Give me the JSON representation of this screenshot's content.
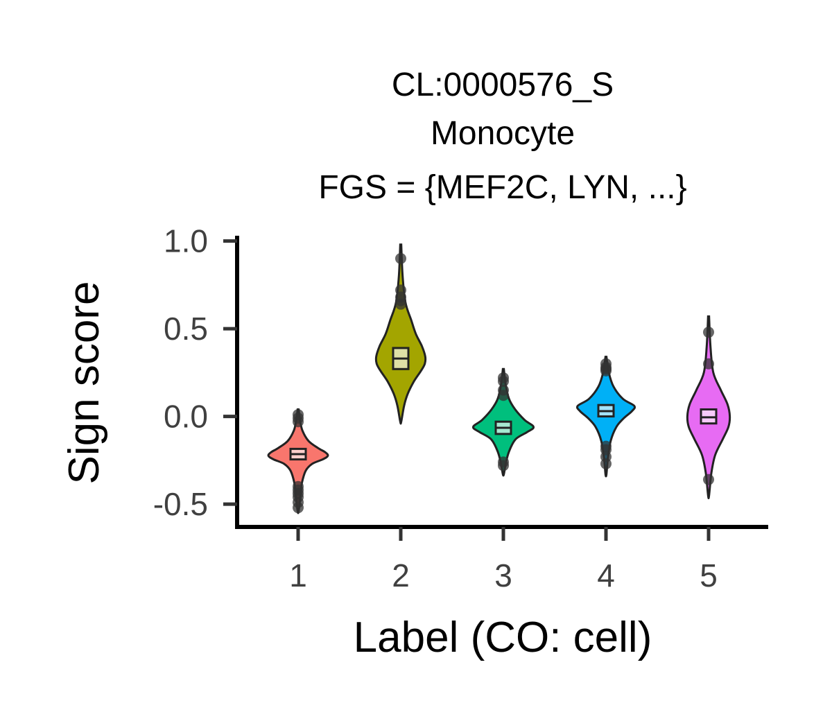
{
  "chart_data": {
    "type": "violin",
    "title_lines": [
      "CL:0000576_S",
      "Monocyte",
      "FGS = {MEF2C, LYN, ...}"
    ],
    "xlabel": "Label (CO: cell)",
    "ylabel": "Sign score",
    "ylim": [
      -0.63,
      1.03
    ],
    "yticks": [
      1.0,
      0.5,
      0.0,
      -0.5
    ],
    "ytick_labels": [
      "1.0",
      "0.5",
      "0.0",
      "-0.5"
    ],
    "categories": [
      "1",
      "2",
      "3",
      "4",
      "5"
    ],
    "grid": false,
    "legend": "none",
    "groups": [
      {
        "label": "1",
        "color": "#F8766D",
        "whisker_low": -0.54,
        "whisker_high": 0.04,
        "q1": -0.245,
        "median": -0.215,
        "q3": -0.185,
        "density": [
          [
            0.04,
            0.01
          ],
          [
            -0.02,
            0.04
          ],
          [
            -0.08,
            0.09
          ],
          [
            -0.14,
            0.22
          ],
          [
            -0.18,
            0.42
          ],
          [
            -0.205,
            0.58
          ],
          [
            -0.225,
            0.63
          ],
          [
            -0.245,
            0.52
          ],
          [
            -0.27,
            0.3
          ],
          [
            -0.31,
            0.16
          ],
          [
            -0.38,
            0.08
          ],
          [
            -0.45,
            0.05
          ],
          [
            -0.54,
            0.01
          ]
        ],
        "outliers": [
          0.01,
          -0.01,
          -0.03,
          -0.4,
          -0.42,
          -0.44,
          -0.46,
          -0.49,
          -0.52
        ]
      },
      {
        "label": "2",
        "color": "#A3A500",
        "whisker_low": -0.03,
        "whisker_high": 0.98,
        "q1": 0.27,
        "median": 0.33,
        "q3": 0.39,
        "density": [
          [
            0.98,
            0.01
          ],
          [
            0.8,
            0.04
          ],
          [
            0.65,
            0.1
          ],
          [
            0.55,
            0.22
          ],
          [
            0.47,
            0.32
          ],
          [
            0.4,
            0.45
          ],
          [
            0.34,
            0.52
          ],
          [
            0.3,
            0.51
          ],
          [
            0.26,
            0.43
          ],
          [
            0.2,
            0.28
          ],
          [
            0.13,
            0.15
          ],
          [
            0.06,
            0.07
          ],
          [
            -0.03,
            0.01
          ]
        ],
        "outliers": [
          0.9,
          0.72,
          0.68,
          0.66,
          0.64
        ]
      },
      {
        "label": "3",
        "color": "#00BF7D",
        "whisker_low": -0.33,
        "whisker_high": 0.27,
        "q1": -0.1,
        "median": -0.065,
        "q3": -0.03,
        "density": [
          [
            0.27,
            0.01
          ],
          [
            0.18,
            0.05
          ],
          [
            0.1,
            0.12
          ],
          [
            0.04,
            0.25
          ],
          [
            -0.02,
            0.45
          ],
          [
            -0.06,
            0.64
          ],
          [
            -0.09,
            0.5
          ],
          [
            -0.13,
            0.26
          ],
          [
            -0.2,
            0.12
          ],
          [
            -0.27,
            0.05
          ],
          [
            -0.33,
            0.01
          ]
        ],
        "outliers": [
          0.22,
          0.2,
          0.15,
          0.12,
          -0.26,
          -0.28
        ]
      },
      {
        "label": "4",
        "color": "#00B0F6",
        "whisker_low": -0.33,
        "whisker_high": 0.34,
        "q1": 0.0,
        "median": 0.03,
        "q3": 0.065,
        "density": [
          [
            0.34,
            0.01
          ],
          [
            0.25,
            0.06
          ],
          [
            0.17,
            0.16
          ],
          [
            0.1,
            0.36
          ],
          [
            0.06,
            0.6
          ],
          [
            0.03,
            0.55
          ],
          [
            -0.01,
            0.38
          ],
          [
            -0.06,
            0.22
          ],
          [
            -0.14,
            0.1
          ],
          [
            -0.24,
            0.04
          ],
          [
            -0.33,
            0.01
          ]
        ],
        "outliers": [
          0.3,
          0.28,
          0.27,
          0.26,
          -0.17,
          -0.19,
          -0.23,
          -0.27
        ]
      },
      {
        "label": "5",
        "color": "#E76BF3",
        "whisker_low": -0.45,
        "whisker_high": 0.57,
        "q1": -0.04,
        "median": -0.005,
        "q3": 0.04,
        "density": [
          [
            0.57,
            0.01
          ],
          [
            0.4,
            0.04
          ],
          [
            0.25,
            0.1
          ],
          [
            0.15,
            0.26
          ],
          [
            0.07,
            0.4
          ],
          [
            0.0,
            0.45
          ],
          [
            -0.06,
            0.42
          ],
          [
            -0.13,
            0.3
          ],
          [
            -0.22,
            0.14
          ],
          [
            -0.32,
            0.06
          ],
          [
            -0.45,
            0.01
          ]
        ],
        "outliers": [
          0.48,
          0.3,
          -0.36
        ]
      }
    ]
  }
}
